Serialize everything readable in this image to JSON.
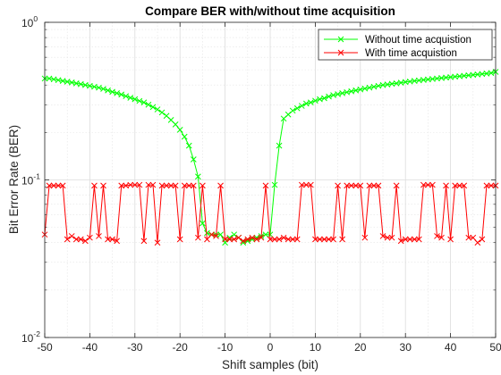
{
  "chart_data": {
    "type": "line",
    "title": "Compare BER with/without time acquisition",
    "xlabel": "Shift samples (bit)",
    "ylabel": "Bit Error Rate (BER)",
    "xlim": [
      -50,
      50
    ],
    "ylim": [
      0.01,
      1
    ],
    "yscale": "log",
    "grid": true,
    "minor_grid": true,
    "legend_position": "top-right",
    "x_ticks": [
      -50,
      -40,
      -30,
      -20,
      -10,
      0,
      10,
      20,
      30,
      40,
      50
    ],
    "x_tick_labels": [
      "-50",
      "-40",
      "-30",
      "-20",
      "-10",
      "0",
      "10",
      "20",
      "30",
      "40",
      "50"
    ],
    "y_ticks": [
      0.01,
      0.1,
      1
    ],
    "y_tick_labels": [
      {
        "base": "10",
        "exp": "-2"
      },
      {
        "base": "10",
        "exp": "-1"
      },
      {
        "base": "10",
        "exp": "0"
      }
    ],
    "x": [
      -50,
      -49,
      -48,
      -47,
      -46,
      -45,
      -44,
      -43,
      -42,
      -41,
      -40,
      -39,
      -38,
      -37,
      -36,
      -35,
      -34,
      -33,
      -32,
      -31,
      -30,
      -29,
      -28,
      -27,
      -26,
      -25,
      -24,
      -23,
      -22,
      -21,
      -20,
      -19,
      -18,
      -17,
      -16,
      -15,
      -14,
      -13,
      -12,
      -11,
      -10,
      -9,
      -8,
      -7,
      -6,
      -5,
      -4,
      -3,
      -2,
      -1,
      0,
      1,
      2,
      3,
      4,
      5,
      6,
      7,
      8,
      9,
      10,
      11,
      12,
      13,
      14,
      15,
      16,
      17,
      18,
      19,
      20,
      21,
      22,
      23,
      24,
      25,
      26,
      27,
      28,
      29,
      30,
      31,
      32,
      33,
      34,
      35,
      36,
      37,
      38,
      39,
      40,
      41,
      42,
      43,
      44,
      45,
      46,
      47,
      48,
      49,
      50
    ],
    "series": [
      {
        "name": "Without time acquistion",
        "color": "#00ff00",
        "marker": "x",
        "values": [
          0.44,
          0.44,
          0.435,
          0.43,
          0.425,
          0.42,
          0.415,
          0.41,
          0.405,
          0.4,
          0.395,
          0.39,
          0.385,
          0.378,
          0.37,
          0.362,
          0.355,
          0.348,
          0.34,
          0.332,
          0.325,
          0.317,
          0.31,
          0.3,
          0.29,
          0.28,
          0.268,
          0.255,
          0.24,
          0.225,
          0.208,
          0.188,
          0.165,
          0.135,
          0.105,
          0.053,
          0.046,
          0.045,
          0.045,
          0.045,
          0.04,
          0.043,
          0.045,
          0.043,
          0.04,
          0.041,
          0.042,
          0.043,
          0.044,
          0.045,
          0.045,
          0.093,
          0.165,
          0.245,
          0.26,
          0.275,
          0.285,
          0.295,
          0.305,
          0.31,
          0.318,
          0.325,
          0.33,
          0.338,
          0.345,
          0.35,
          0.355,
          0.36,
          0.365,
          0.37,
          0.375,
          0.38,
          0.385,
          0.39,
          0.395,
          0.4,
          0.403,
          0.407,
          0.41,
          0.414,
          0.418,
          0.421,
          0.425,
          0.428,
          0.431,
          0.434,
          0.437,
          0.44,
          0.443,
          0.446,
          0.449,
          0.452,
          0.455,
          0.458,
          0.461,
          0.464,
          0.467,
          0.47,
          0.473,
          0.477,
          0.485
        ]
      },
      {
        "name": "With time acquistion",
        "color": "#ff0000",
        "marker": "x",
        "values": [
          0.045,
          0.092,
          0.092,
          0.092,
          0.092,
          0.042,
          0.044,
          0.042,
          0.042,
          0.041,
          0.043,
          0.092,
          0.044,
          0.092,
          0.042,
          0.042,
          0.041,
          0.092,
          0.092,
          0.093,
          0.093,
          0.093,
          0.041,
          0.093,
          0.093,
          0.04,
          0.092,
          0.092,
          0.092,
          0.092,
          0.042,
          0.092,
          0.092,
          0.092,
          0.043,
          0.092,
          0.042,
          0.045,
          0.044,
          0.092,
          0.042,
          0.042,
          0.042,
          0.043,
          0.041,
          0.042,
          0.043,
          0.042,
          0.043,
          0.092,
          0.042,
          0.042,
          0.042,
          0.043,
          0.042,
          0.042,
          0.042,
          0.093,
          0.093,
          0.093,
          0.042,
          0.042,
          0.042,
          0.042,
          0.042,
          0.092,
          0.042,
          0.092,
          0.092,
          0.092,
          0.092,
          0.043,
          0.092,
          0.092,
          0.092,
          0.044,
          0.043,
          0.043,
          0.092,
          0.041,
          0.042,
          0.042,
          0.042,
          0.042,
          0.093,
          0.093,
          0.093,
          0.044,
          0.043,
          0.092,
          0.042,
          0.092,
          0.092,
          0.092,
          0.043,
          0.043,
          0.04,
          0.042,
          0.092,
          0.092,
          0.092
        ]
      }
    ]
  }
}
